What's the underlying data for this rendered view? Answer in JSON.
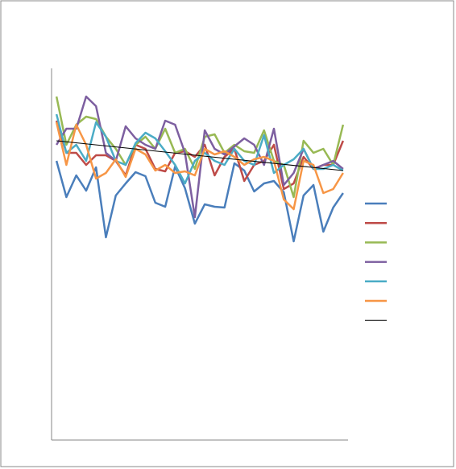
{
  "chart_data": {
    "type": "line",
    "categories": [
      null,
      null,
      null,
      null,
      null,
      null,
      null,
      null,
      null,
      null,
      null,
      null,
      null,
      null,
      null,
      null,
      null,
      null,
      null,
      null,
      null,
      null,
      null,
      null,
      null,
      null,
      null,
      null,
      null,
      null
    ],
    "ylim": [
      0,
      460
    ],
    "series": [
      {
        "color": "#4a7ebb",
        "values": [
          347,
          302,
          329,
          310,
          339,
          252,
          304,
          319,
          333,
          328,
          295,
          290,
          340,
          313,
          269,
          293,
          290,
          289,
          344,
          335,
          309,
          319,
          322,
          308,
          247,
          304,
          317,
          259,
          289,
          307
        ]
      },
      {
        "color": "#be4b48",
        "values": [
          397,
          357,
          357,
          342,
          354,
          354,
          347,
          329,
          367,
          362,
          337,
          334,
          357,
          359,
          352,
          367,
          329,
          352,
          362,
          322,
          342,
          347,
          367,
          312,
          319,
          352,
          337,
          342,
          342,
          372
        ]
      },
      {
        "color": "#98b954",
        "values": [
          427,
          367,
          392,
          402,
          399,
          377,
          362,
          342,
          367,
          377,
          362,
          387,
          357,
          362,
          337,
          377,
          380,
          357,
          367,
          359,
          357,
          385,
          347,
          342,
          302,
          372,
          357,
          362,
          342,
          392
        ]
      },
      {
        "color": "#7d5fa0",
        "values": [
          367,
          387,
          387,
          427,
          415,
          357,
          347,
          390,
          375,
          367,
          362,
          397,
          392,
          357,
          277,
          385,
          362,
          355,
          365,
          375,
          367,
          342,
          387,
          317,
          332,
          362,
          337,
          342,
          347,
          337
        ]
      },
      {
        "color": "#4bacc6",
        "values": [
          405,
          357,
          367,
          347,
          395,
          377,
          347,
          342,
          369,
          382,
          375,
          359,
          342,
          319,
          347,
          357,
          347,
          342,
          362,
          347,
          342,
          379,
          332,
          342,
          349,
          362,
          337,
          337,
          342,
          335
        ]
      },
      {
        "color": "#f79646",
        "values": [
          395,
          342,
          392,
          367,
          325,
          332,
          349,
          327,
          362,
          355,
          335,
          342,
          332,
          334,
          329,
          362,
          355,
          359,
          352,
          342,
          349,
          352,
          347,
          299,
          287,
          347,
          342,
          307,
          312,
          332
        ]
      }
    ],
    "trendline": {
      "color": "#000000",
      "values": [
        372,
        335
      ]
    }
  }
}
